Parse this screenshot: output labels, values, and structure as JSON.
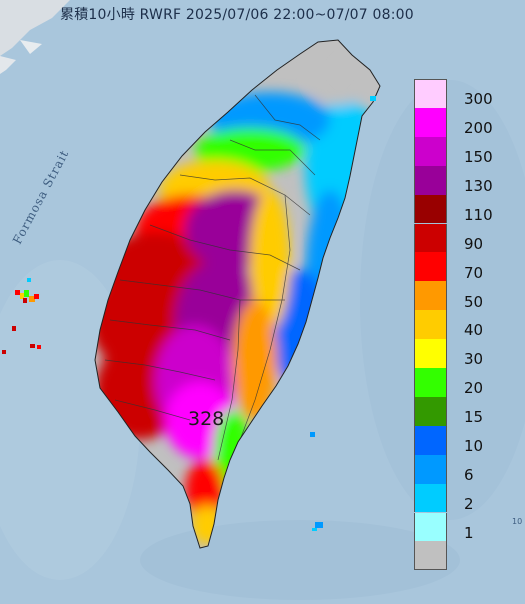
{
  "title": "累積10小時 RWRF 2025/07/06 22:00~07/07 08:00",
  "strait_label": "Formosa Strait",
  "max_value_label": "328",
  "edge_mark": "10",
  "legend": {
    "items": [
      {
        "label": "300",
        "color": "#ffccff"
      },
      {
        "label": "200",
        "color": "#ff00ff"
      },
      {
        "label": "150",
        "color": "#cc00cc"
      },
      {
        "label": "130",
        "color": "#990099"
      },
      {
        "label": "110",
        "color": "#990000"
      },
      {
        "label": "90",
        "color": "#cc0000"
      },
      {
        "label": "70",
        "color": "#ff0000"
      },
      {
        "label": "50",
        "color": "#ff9900"
      },
      {
        "label": "40",
        "color": "#ffcc00"
      },
      {
        "label": "30",
        "color": "#ffff00"
      },
      {
        "label": "20",
        "color": "#33ff00"
      },
      {
        "label": "15",
        "color": "#339900"
      },
      {
        "label": "10",
        "color": "#0066ff"
      },
      {
        "label": "6",
        "color": "#0099ff"
      },
      {
        "label": "2",
        "color": "#00ccff"
      },
      {
        "label": "1",
        "color": "#99ffff"
      },
      {
        "label": "",
        "color": "#c0c0c0"
      }
    ]
  },
  "colors": {
    "sea": "#a9c6dc",
    "land_base": "#c0c0c0"
  }
}
